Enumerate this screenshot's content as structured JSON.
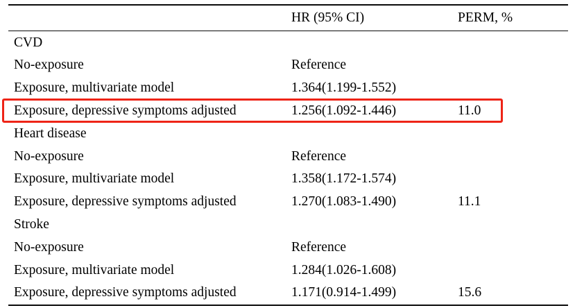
{
  "table": {
    "header": {
      "label": "",
      "hr": "HR (95% CI)",
      "perm": "PERM, %"
    },
    "rows": [
      {
        "label": "CVD",
        "hr": "",
        "perm": "",
        "section": true,
        "highlighted": false
      },
      {
        "label": "No-exposure",
        "hr": "Reference",
        "perm": "",
        "section": false,
        "highlighted": false
      },
      {
        "label": "Exposure, multivariate model",
        "hr": "1.364(1.199-1.552)",
        "perm": "",
        "section": false,
        "highlighted": false
      },
      {
        "label": "Exposure, depressive symptoms adjusted",
        "hr": "1.256(1.092-1.446)",
        "perm": "11.0",
        "section": false,
        "highlighted": true
      },
      {
        "label": "Heart disease",
        "hr": "",
        "perm": "",
        "section": true,
        "highlighted": false
      },
      {
        "label": "No-exposure",
        "hr": "Reference",
        "perm": "",
        "section": false,
        "highlighted": false
      },
      {
        "label": "Exposure, multivariate model",
        "hr": "1.358(1.172-1.574)",
        "perm": "",
        "section": false,
        "highlighted": false
      },
      {
        "label": "Exposure, depressive symptoms adjusted",
        "hr": "1.270(1.083-1.490)",
        "perm": "11.1",
        "section": false,
        "highlighted": false
      },
      {
        "label": "Stroke",
        "hr": "",
        "perm": "",
        "section": true,
        "highlighted": false
      },
      {
        "label": "No-exposure",
        "hr": "Reference",
        "perm": "",
        "section": false,
        "highlighted": false
      },
      {
        "label": "Exposure, multivariate model",
        "hr": "1.284(1.026-1.608)",
        "perm": "",
        "section": false,
        "highlighted": false
      },
      {
        "label": "Exposure, depressive symptoms adjusted",
        "hr": "1.171(0.914-1.499)",
        "perm": "15.6",
        "section": false,
        "highlighted": false
      }
    ],
    "highlight_color": "#ee2417"
  }
}
